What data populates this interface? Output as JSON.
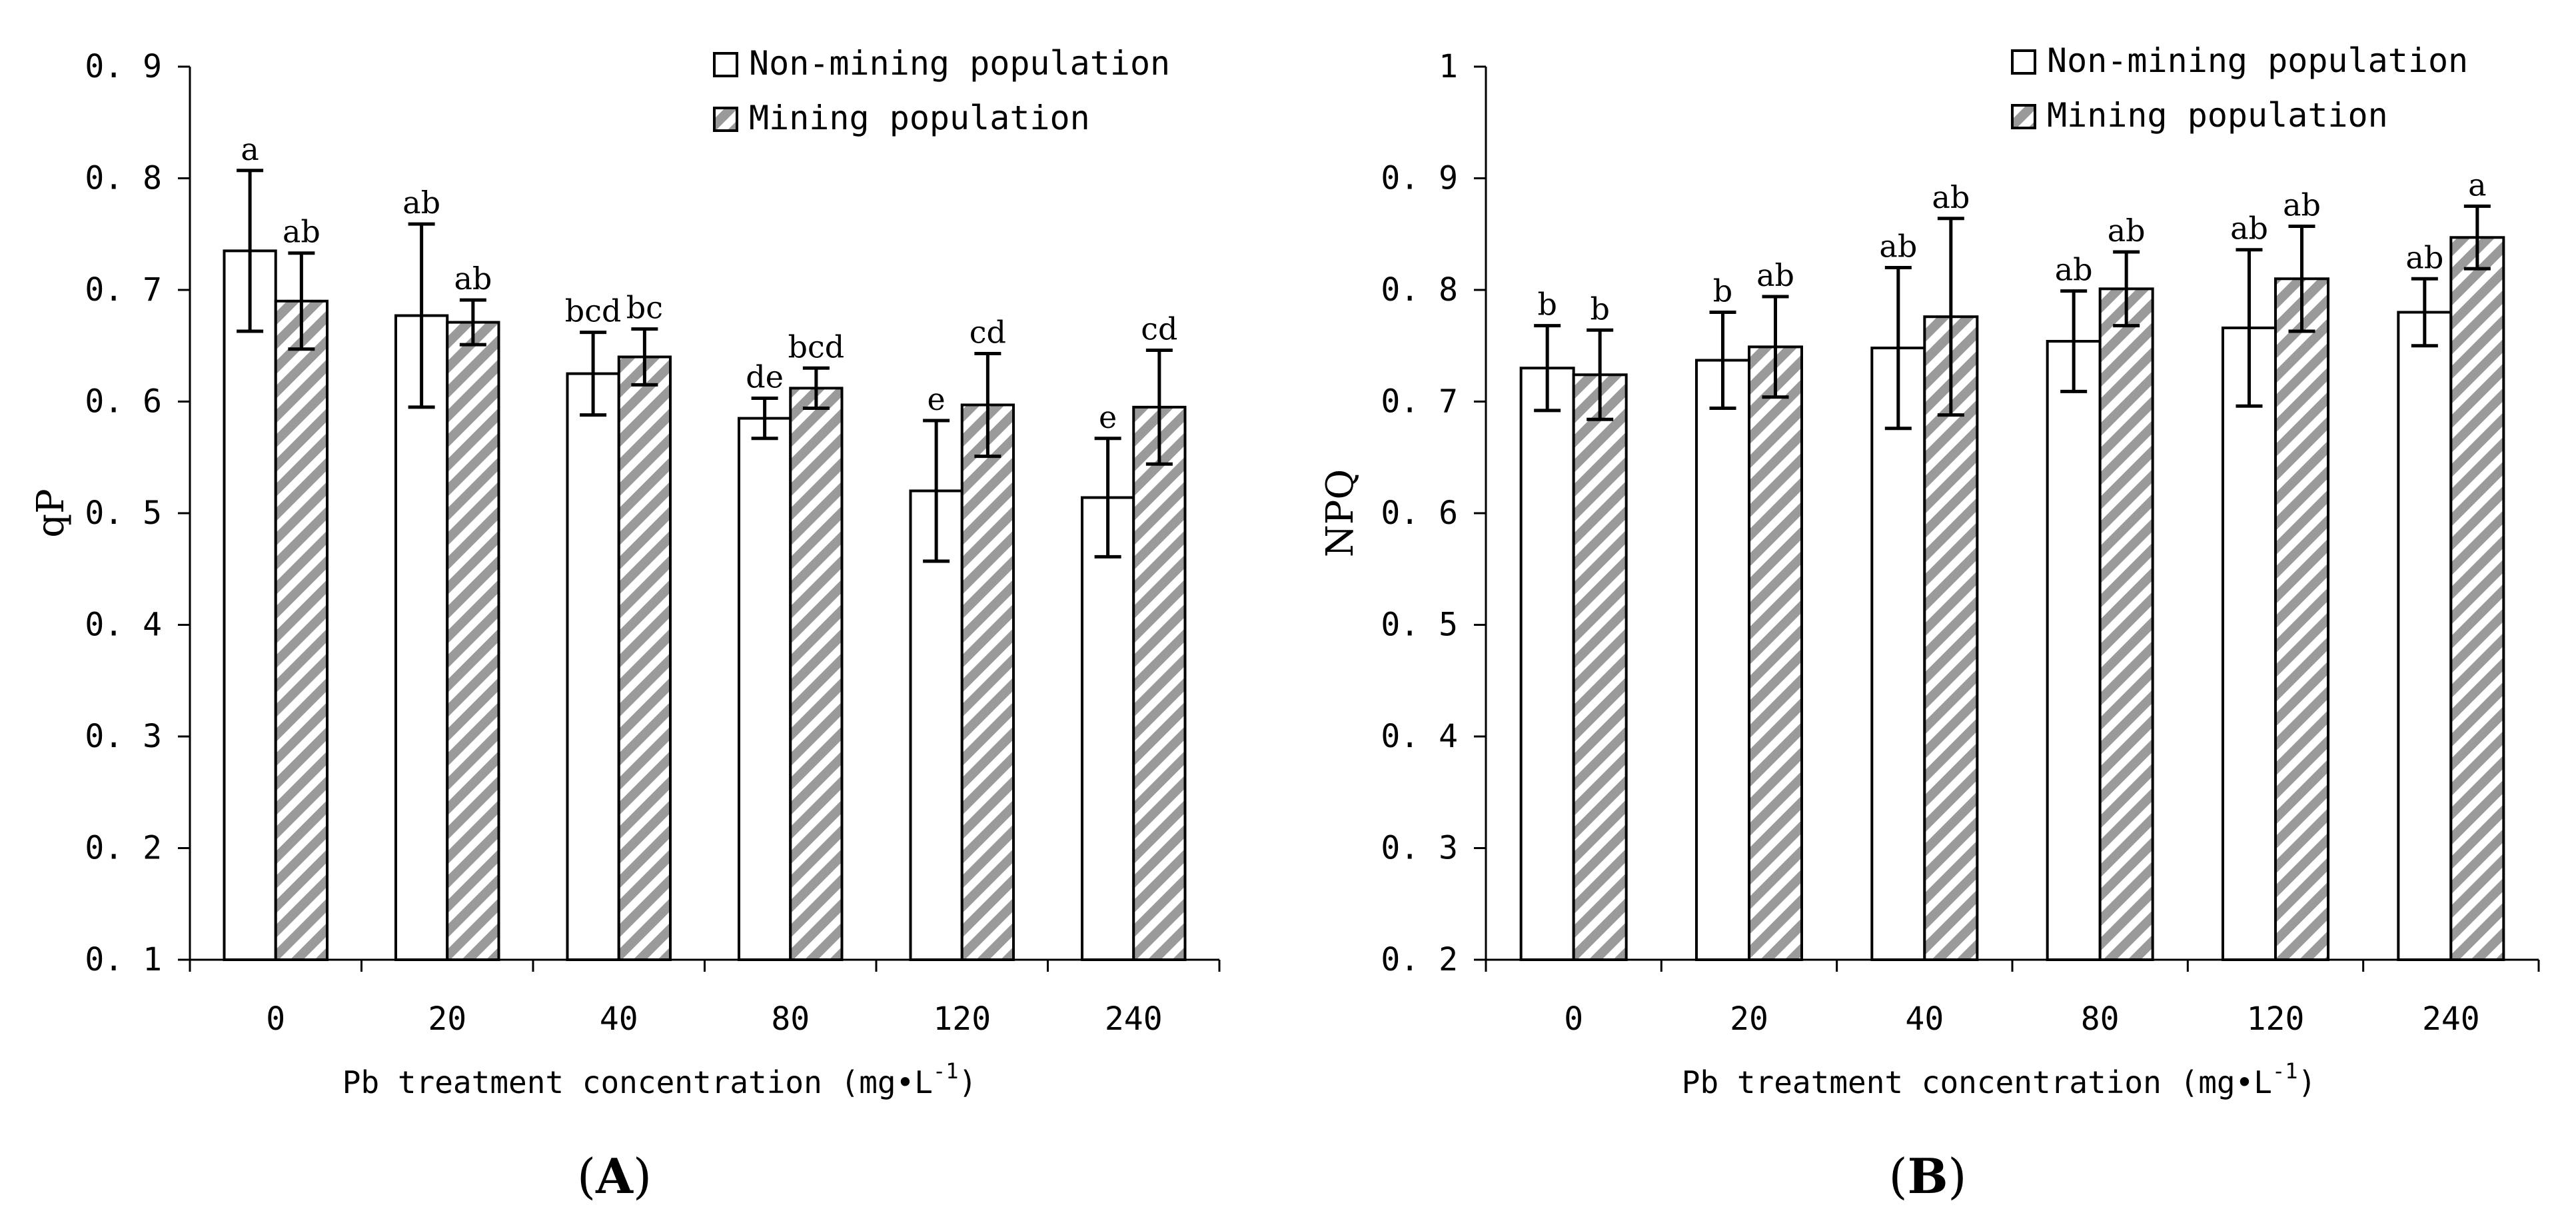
{
  "chart_data": [
    {
      "type": "bar",
      "panel_label": "A",
      "ylabel": "qP",
      "xlabel": "Pb treatment concentration (mg•L",
      "xlabel_sup": "-1",
      "xlabel_close": ")",
      "ylim": [
        0.1,
        0.9
      ],
      "yticks": [
        "0. 1",
        "0. 2",
        "0. 3",
        "0. 4",
        "0. 5",
        "0. 6",
        "0. 7",
        "0. 8",
        "0. 9"
      ],
      "categories": [
        "0",
        "20",
        "40",
        "80",
        "120",
        "240"
      ],
      "legend": [
        "Non-mining population",
        "Mining population"
      ],
      "series": [
        {
          "name": "Non-mining population",
          "values": [
            0.735,
            0.677,
            0.625,
            0.585,
            0.52,
            0.514
          ],
          "errors": [
            0.072,
            0.082,
            0.037,
            0.018,
            0.063,
            0.053
          ],
          "labels": [
            "a",
            "ab",
            "bcd",
            "de",
            "e",
            "e"
          ]
        },
        {
          "name": "Mining population",
          "values": [
            0.69,
            0.671,
            0.64,
            0.612,
            0.597,
            0.595
          ],
          "errors": [
            0.043,
            0.02,
            0.025,
            0.018,
            0.046,
            0.051
          ],
          "labels": [
            "ab",
            "ab",
            "bc",
            "bcd",
            "cd",
            "cd"
          ]
        }
      ]
    },
    {
      "type": "bar",
      "panel_label": "B",
      "ylabel": "NPQ",
      "xlabel": "Pb treatment concentration (mg•L",
      "xlabel_sup": "-1",
      "xlabel_close": ")",
      "ylim": [
        0.2,
        1.0
      ],
      "yticks": [
        "0. 2",
        "0. 3",
        "0. 4",
        "0. 5",
        "0. 6",
        "0. 7",
        "0. 8",
        "0. 9",
        "1"
      ],
      "categories": [
        "0",
        "20",
        "40",
        "80",
        "120",
        "240"
      ],
      "legend": [
        "Non-mining population",
        "Mining population"
      ],
      "series": [
        {
          "name": "Non-mining population",
          "values": [
            0.73,
            0.737,
            0.748,
            0.754,
            0.766,
            0.78
          ],
          "errors": [
            0.038,
            0.043,
            0.072,
            0.045,
            0.07,
            0.03
          ],
          "labels": [
            "b",
            "b",
            "ab",
            "ab",
            "ab",
            "ab"
          ]
        },
        {
          "name": "Mining population",
          "values": [
            0.724,
            0.749,
            0.776,
            0.801,
            0.81,
            0.847
          ],
          "errors": [
            0.04,
            0.045,
            0.088,
            0.033,
            0.047,
            0.028
          ],
          "labels": [
            "b",
            "ab",
            "ab",
            "ab",
            "ab",
            "a"
          ]
        }
      ]
    }
  ]
}
